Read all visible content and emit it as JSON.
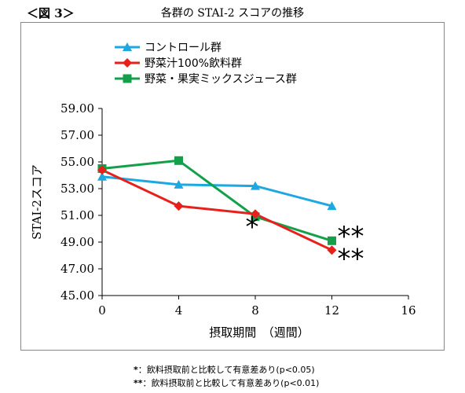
{
  "figure_label": "＜図 3＞",
  "footnotes": [
    {
      "mark": "*",
      "text": "：飲料摂取前と比較して有意差あり(p<0.05)"
    },
    {
      "mark": "**",
      "text": "：飲料摂取前と比較して有意差あり(p<0.01)"
    }
  ],
  "colors": {
    "control": "#1ca8e0",
    "vegetable": "#e8201c",
    "mixed": "#14a04a"
  },
  "chart_data": {
    "type": "line",
    "title": "各群の STAI-2 スコアの推移",
    "xlabel": "摂取期間　（週間）",
    "ylabel": "STAI-2スコア",
    "xlim": [
      0,
      16
    ],
    "ylim": [
      45,
      59
    ],
    "x_ticks": [
      "0",
      "4",
      "8",
      "12",
      "16"
    ],
    "y_ticks": [
      "45.00",
      "47.00",
      "49.00",
      "51.00",
      "53.00",
      "55.00",
      "57.00",
      "59.00"
    ],
    "series": [
      {
        "name": "コントロール群",
        "marker": "triangle",
        "color": "#1ca8e0",
        "x": [
          0,
          4,
          8,
          12
        ],
        "y": [
          53.9,
          53.3,
          53.2,
          51.7
        ]
      },
      {
        "name": "野菜汁100%飲料群",
        "marker": "diamond",
        "color": "#e8201c",
        "x": [
          0,
          4,
          8,
          12
        ],
        "y": [
          54.4,
          51.7,
          51.1,
          48.4
        ]
      },
      {
        "name": "野菜・果実ミックスジュース群",
        "marker": "square",
        "color": "#14a04a",
        "x": [
          0,
          4,
          8,
          12
        ],
        "y": [
          54.5,
          55.1,
          50.9,
          49.1
        ]
      }
    ],
    "annotations": [
      {
        "text": "*",
        "x": 8,
        "y": 50.3
      },
      {
        "text": "**",
        "x": 12,
        "y": 49.6
      },
      {
        "text": "**",
        "x": 12,
        "y": 47.9
      }
    ]
  }
}
